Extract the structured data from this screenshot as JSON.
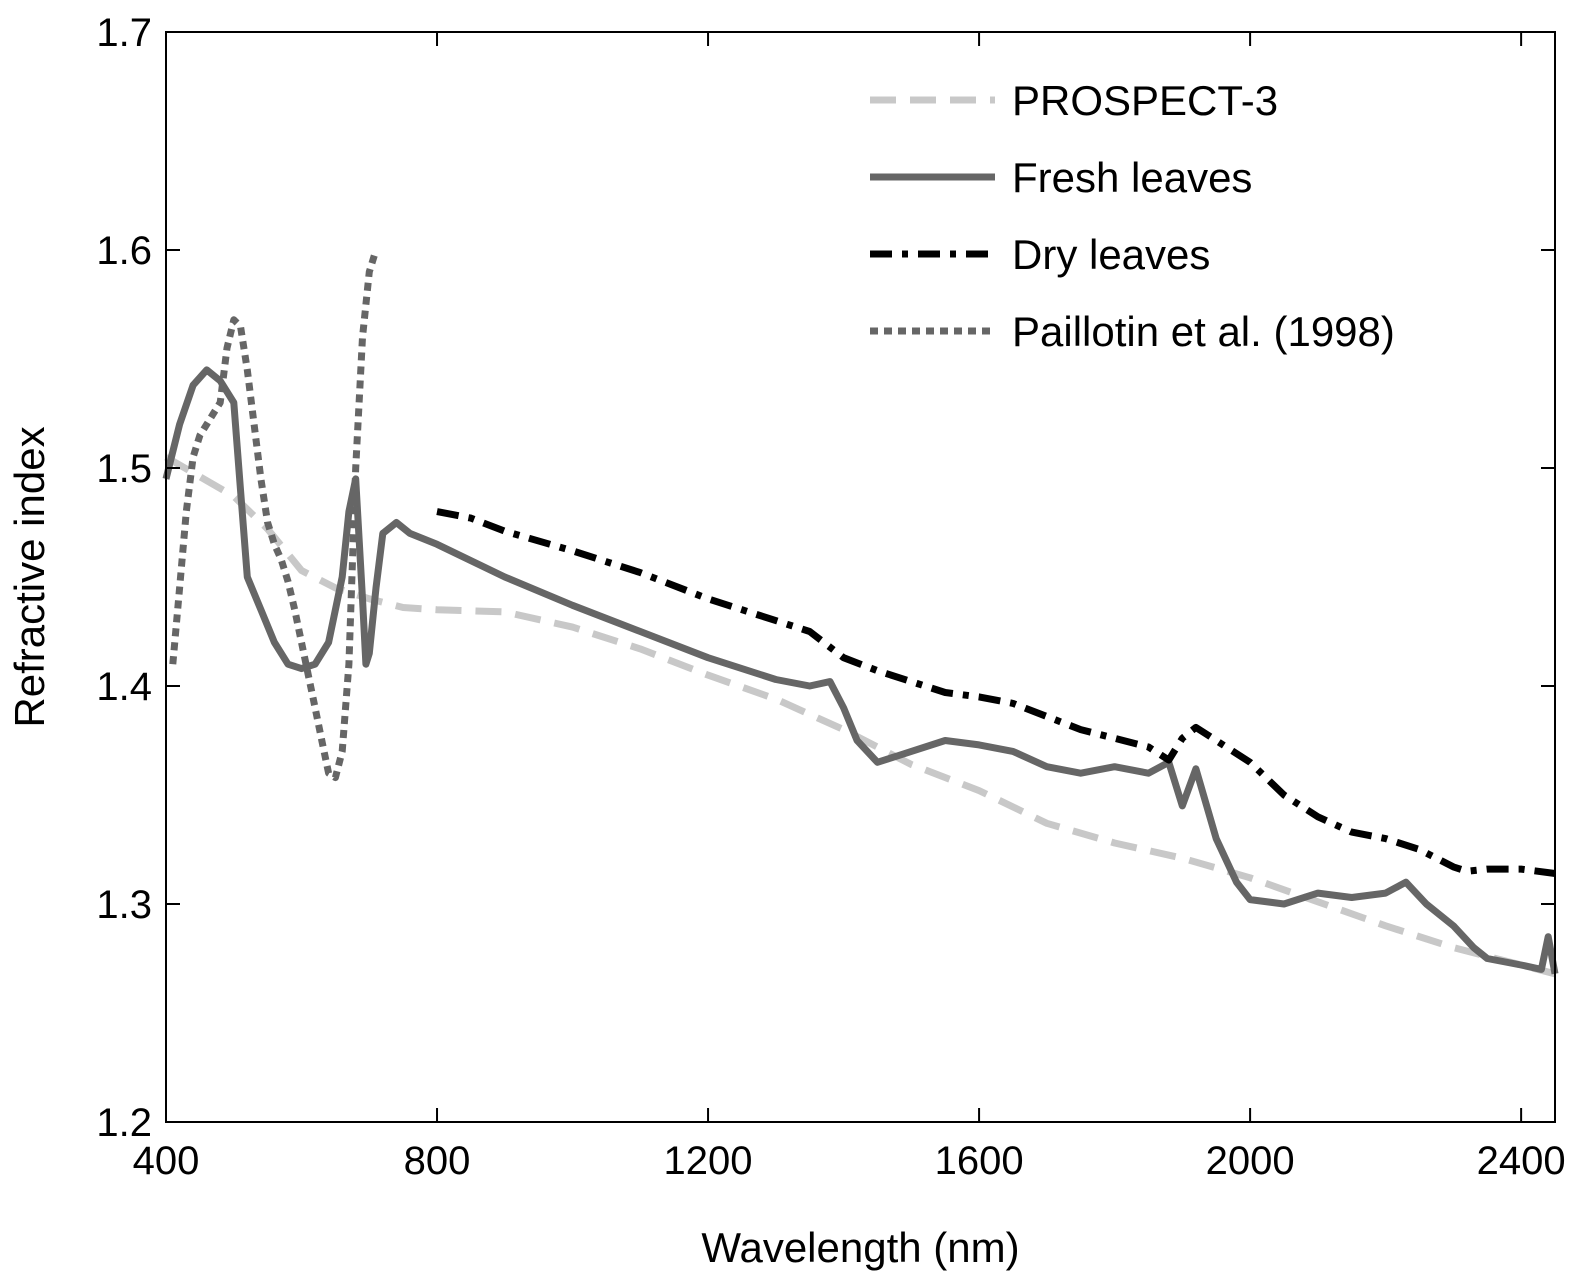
{
  "chart_data": {
    "type": "line",
    "title": "",
    "xlabel": "Wavelength (nm)",
    "ylabel": "Refractive index",
    "xlim": [
      400,
      2450
    ],
    "ylim": [
      1.2,
      1.7
    ],
    "xticks": [
      400,
      800,
      1200,
      1600,
      2000,
      2400
    ],
    "yticks": [
      1.2,
      1.3,
      1.4,
      1.5,
      1.6,
      1.7
    ],
    "xtick_labels": [
      "400",
      "800",
      "1200",
      "1600",
      "2000",
      "2400"
    ],
    "ytick_labels": [
      "1.2",
      "1.3",
      "1.4",
      "1.5",
      "1.6",
      "1.7"
    ],
    "grid": false,
    "legend_position": "top-right",
    "series": [
      {
        "name": "PROSPECT-3",
        "color": "#c8c8c8",
        "style": "dashed",
        "x": [
          400,
          450,
          500,
          550,
          600,
          650,
          700,
          750,
          800,
          900,
          1000,
          1100,
          1200,
          1300,
          1400,
          1500,
          1600,
          1700,
          1800,
          1900,
          2000,
          2100,
          2200,
          2300,
          2400,
          2450
        ],
        "y": [
          1.505,
          1.496,
          1.487,
          1.472,
          1.453,
          1.445,
          1.44,
          1.436,
          1.435,
          1.434,
          1.427,
          1.417,
          1.405,
          1.394,
          1.38,
          1.364,
          1.352,
          1.337,
          1.328,
          1.321,
          1.312,
          1.301,
          1.29,
          1.28,
          1.272,
          1.268
        ]
      },
      {
        "name": "Fresh leaves",
        "color": "#666666",
        "style": "solid",
        "x": [
          400,
          420,
          440,
          460,
          480,
          500,
          510,
          520,
          540,
          560,
          580,
          600,
          620,
          640,
          660,
          670,
          680,
          690,
          695,
          700,
          710,
          720,
          740,
          760,
          800,
          900,
          1000,
          1100,
          1200,
          1300,
          1350,
          1380,
          1400,
          1420,
          1450,
          1480,
          1500,
          1550,
          1600,
          1650,
          1700,
          1750,
          1800,
          1850,
          1880,
          1900,
          1920,
          1950,
          1980,
          2000,
          2050,
          2100,
          2150,
          2200,
          2230,
          2260,
          2300,
          2330,
          2350,
          2400,
          2430,
          2440,
          2450
        ],
        "y": [
          1.495,
          1.52,
          1.538,
          1.545,
          1.54,
          1.53,
          1.49,
          1.45,
          1.435,
          1.42,
          1.41,
          1.408,
          1.41,
          1.42,
          1.45,
          1.48,
          1.495,
          1.44,
          1.41,
          1.415,
          1.445,
          1.47,
          1.475,
          1.47,
          1.465,
          1.45,
          1.437,
          1.425,
          1.413,
          1.403,
          1.4,
          1.402,
          1.39,
          1.375,
          1.365,
          1.368,
          1.37,
          1.375,
          1.373,
          1.37,
          1.363,
          1.36,
          1.363,
          1.36,
          1.365,
          1.345,
          1.362,
          1.33,
          1.31,
          1.302,
          1.3,
          1.305,
          1.303,
          1.305,
          1.31,
          1.3,
          1.29,
          1.28,
          1.275,
          1.272,
          1.27,
          1.285,
          1.268
        ]
      },
      {
        "name": "Dry leaves",
        "color": "#000000",
        "style": "dashdot",
        "x": [
          800,
          850,
          900,
          1000,
          1100,
          1200,
          1300,
          1350,
          1400,
          1450,
          1500,
          1550,
          1600,
          1650,
          1700,
          1750,
          1800,
          1850,
          1880,
          1900,
          1920,
          1950,
          2000,
          2050,
          2100,
          2150,
          2200,
          2250,
          2300,
          2320,
          2350,
          2400,
          2450
        ],
        "y": [
          1.48,
          1.477,
          1.471,
          1.462,
          1.452,
          1.44,
          1.43,
          1.425,
          1.413,
          1.407,
          1.402,
          1.397,
          1.395,
          1.392,
          1.386,
          1.38,
          1.376,
          1.372,
          1.366,
          1.376,
          1.381,
          1.375,
          1.365,
          1.35,
          1.34,
          1.333,
          1.33,
          1.325,
          1.317,
          1.315,
          1.316,
          1.316,
          1.314
        ]
      },
      {
        "name": "Paillotin et al. (1998)",
        "color": "#666666",
        "style": "dotted",
        "x": [
          410,
          420,
          430,
          440,
          450,
          460,
          470,
          480,
          490,
          500,
          510,
          520,
          530,
          540,
          550,
          560,
          570,
          580,
          590,
          600,
          610,
          620,
          630,
          640,
          650,
          660,
          670,
          680,
          690,
          700,
          710
        ],
        "y": [
          1.41,
          1.445,
          1.48,
          1.505,
          1.515,
          1.52,
          1.525,
          1.53,
          1.555,
          1.568,
          1.565,
          1.545,
          1.52,
          1.495,
          1.475,
          1.465,
          1.458,
          1.448,
          1.435,
          1.42,
          1.405,
          1.39,
          1.375,
          1.36,
          1.358,
          1.37,
          1.41,
          1.5,
          1.56,
          1.59,
          1.6
        ]
      }
    ]
  }
}
